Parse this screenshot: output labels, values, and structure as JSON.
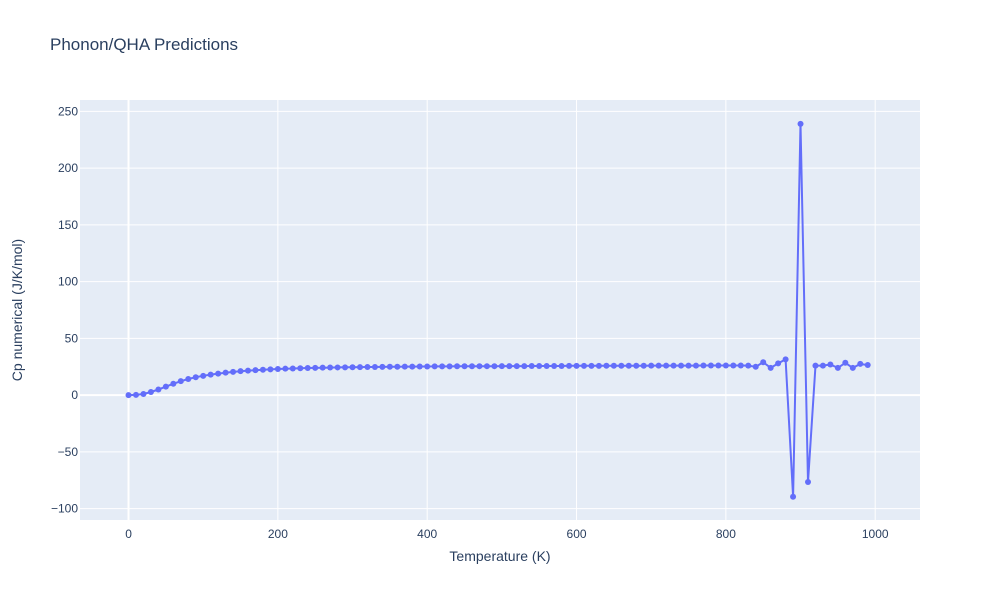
{
  "chart_data": {
    "type": "line",
    "title": "Phonon/QHA Predictions",
    "xlabel": "Temperature (K)",
    "ylabel": "Cp numerical (J/K/mol)",
    "xlim": [
      -65,
      1060
    ],
    "ylim": [
      -110,
      260
    ],
    "xticks": [
      0,
      200,
      400,
      600,
      800,
      1000
    ],
    "yticks": [
      -100,
      -50,
      0,
      50,
      100,
      150,
      200,
      250
    ],
    "ytick_labels": [
      "−100",
      "−50",
      "0",
      "50",
      "100",
      "150",
      "200",
      "250"
    ],
    "grid": true,
    "mode": "lines+markers",
    "colors": {
      "series": "#636efa",
      "plot_bg": "#e5ecf6",
      "grid": "#ffffff",
      "text": "#2a3f5f"
    },
    "series": [
      {
        "x": [
          0,
          10,
          20,
          30,
          40,
          50,
          60,
          70,
          80,
          90,
          100,
          110,
          120,
          130,
          140,
          150,
          160,
          170,
          180,
          190,
          200,
          210,
          220,
          230,
          240,
          250,
          260,
          270,
          280,
          290,
          300,
          310,
          320,
          330,
          340,
          350,
          360,
          370,
          380,
          390,
          400,
          410,
          420,
          430,
          440,
          450,
          460,
          470,
          480,
          490,
          500,
          510,
          520,
          530,
          540,
          550,
          560,
          570,
          580,
          590,
          600,
          610,
          620,
          630,
          640,
          650,
          660,
          670,
          680,
          690,
          700,
          710,
          720,
          730,
          740,
          750,
          760,
          770,
          780,
          790,
          800,
          810,
          820,
          830,
          840,
          850,
          860,
          870,
          880,
          890,
          900,
          910,
          920,
          930,
          940,
          950,
          960,
          970,
          980,
          990
        ],
        "y": [
          0,
          0.2,
          1.0,
          2.8,
          5.0,
          7.5,
          10.0,
          12.3,
          14.2,
          15.8,
          17.0,
          18.1,
          19.0,
          19.8,
          20.5,
          21.1,
          21.6,
          22.0,
          22.4,
          22.7,
          23.0,
          23.3,
          23.5,
          23.7,
          23.9,
          24.0,
          24.2,
          24.3,
          24.4,
          24.5,
          24.6,
          24.7,
          24.8,
          24.8,
          24.9,
          25.0,
          25.0,
          25.1,
          25.1,
          25.2,
          25.2,
          25.3,
          25.3,
          25.3,
          25.4,
          25.4,
          25.4,
          25.5,
          25.5,
          25.5,
          25.6,
          25.6,
          25.6,
          25.6,
          25.7,
          25.7,
          25.7,
          25.7,
          25.7,
          25.8,
          25.8,
          25.8,
          25.8,
          25.8,
          25.9,
          25.9,
          25.9,
          25.9,
          25.9,
          25.9,
          26.0,
          26.0,
          26.0,
          26.0,
          26.0,
          26.0,
          26.0,
          26.1,
          26.1,
          26.1,
          26.1,
          26.1,
          26.1,
          26.0,
          25.0,
          29.0,
          24.0,
          28.0,
          31.5,
          -89.5,
          239,
          -76.5,
          26.0,
          26.0,
          27.0,
          24.0,
          28.5,
          24.0,
          27.5,
          26.5
        ]
      }
    ]
  }
}
